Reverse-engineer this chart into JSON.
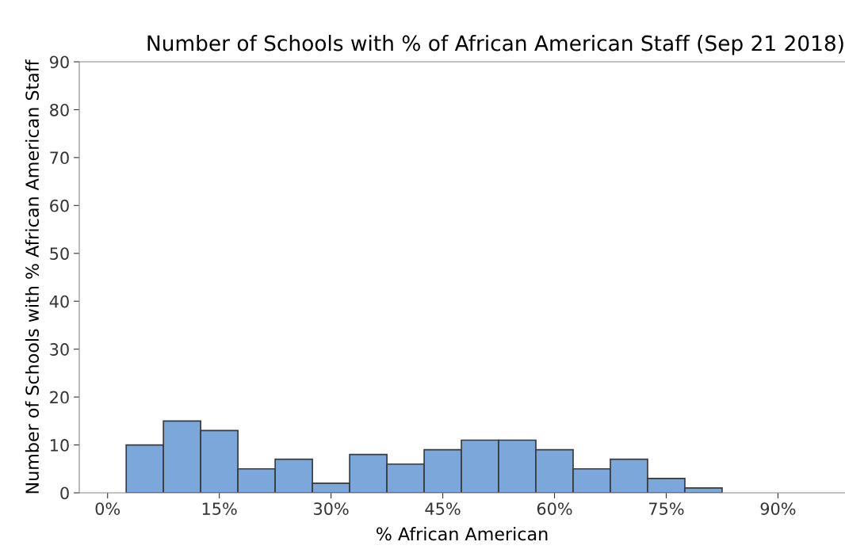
{
  "chart_data": {
    "type": "histogram",
    "title": "Number of Schools with % of African American Staff (Sep 21 2018)",
    "xlabel": "% African American",
    "ylabel": "Number of Schools with % African American Staff",
    "bins": [
      2.5,
      7.5,
      12.5,
      17.5,
      22.5,
      27.5,
      32.5,
      37.5,
      42.5,
      47.5,
      52.5,
      57.5,
      62.5,
      67.5,
      72.5,
      77.5,
      82.5
    ],
    "values": [
      10,
      15,
      13,
      5,
      7,
      2,
      8,
      6,
      9,
      11,
      11,
      9,
      5,
      7,
      3,
      1
    ],
    "color": "#7ba7da",
    "xlim": [
      -3.8,
      99
    ],
    "xticks": [
      {
        "value": 0,
        "label": "0%"
      },
      {
        "value": 15,
        "label": "15%"
      },
      {
        "value": 30,
        "label": "30%"
      },
      {
        "value": 45,
        "label": "45%"
      },
      {
        "value": 60,
        "label": "60%"
      },
      {
        "value": 75,
        "label": "75%"
      },
      {
        "value": 90,
        "label": "90%"
      }
    ],
    "ylim": [
      0,
      90
    ],
    "yticks": [
      0,
      10,
      20,
      30,
      40,
      50,
      60,
      70,
      80,
      90
    ],
    "grid": false
  }
}
